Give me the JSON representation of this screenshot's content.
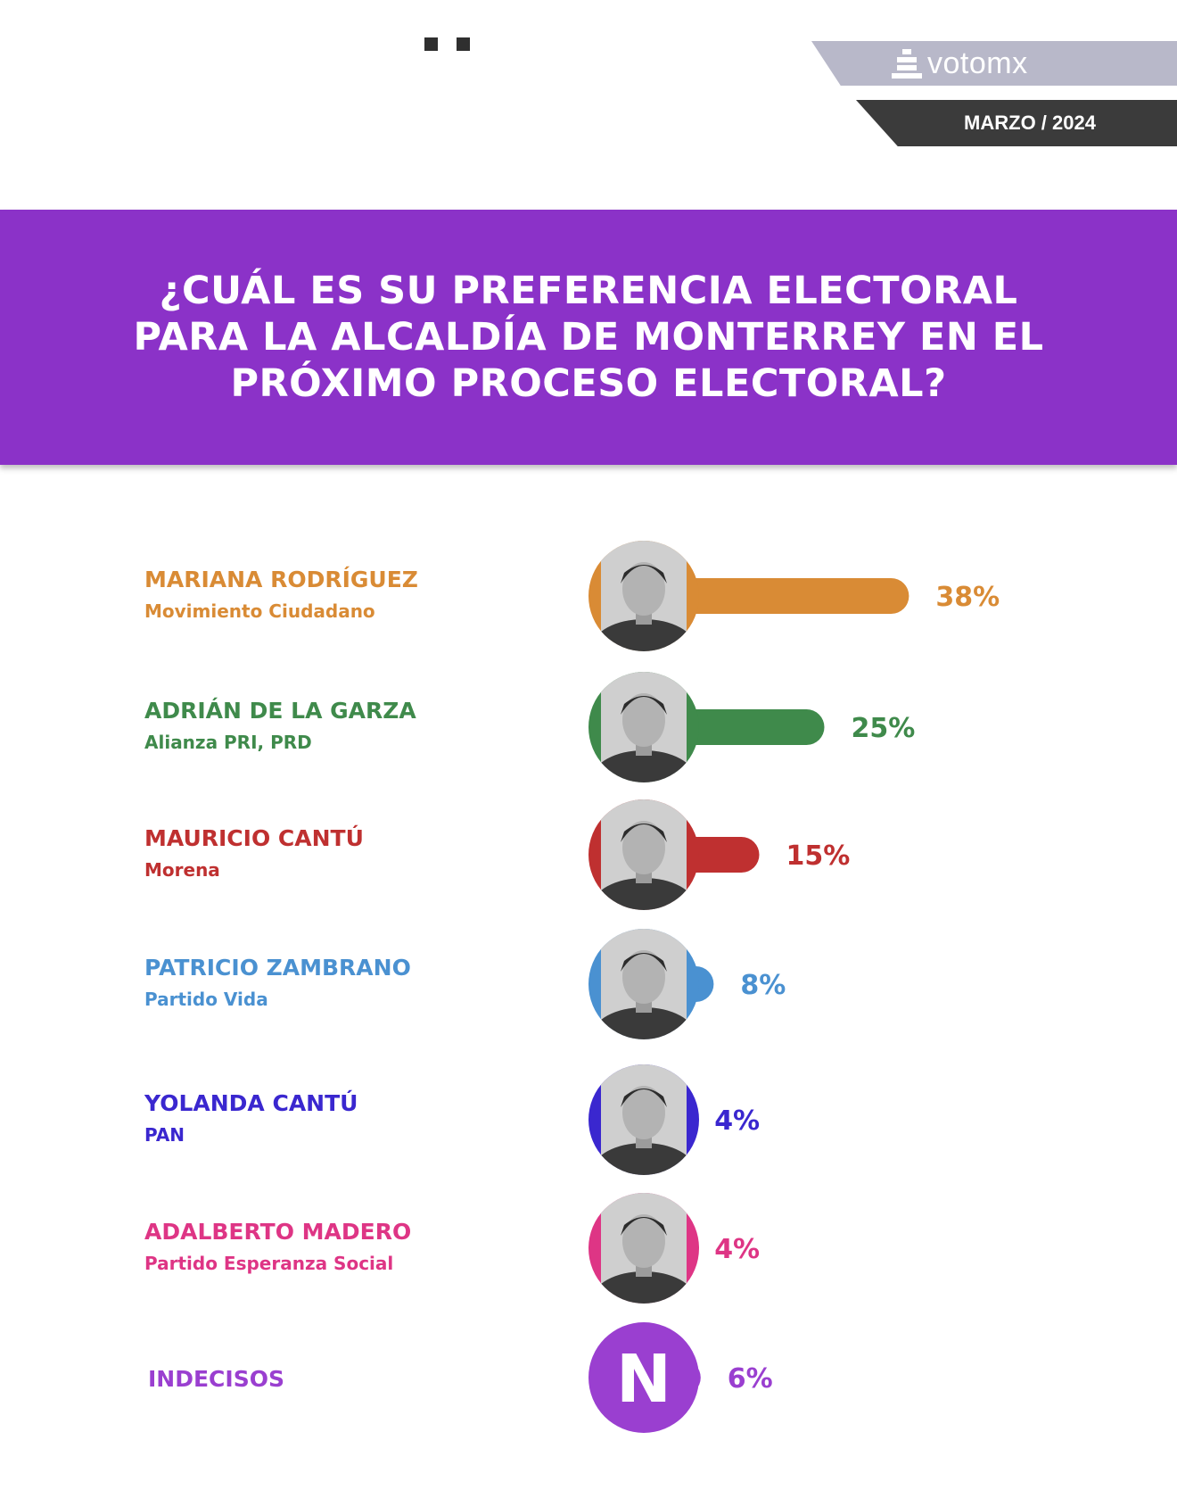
{
  "header": {
    "brand_name": "votomx",
    "date": "MARZO / 2024",
    "question": "¿CUÁL ES SU PREFERENCIA ELECTORAL PARA LA ALCALDÍA DE MONTERREY EN EL PRÓXIMO PROCESO ELECTORAL?"
  },
  "chart_data": {
    "type": "bar",
    "title": "¿CUÁL ES SU PREFERENCIA ELECTORAL PARA LA ALCALDÍA DE MONTERREY EN EL PRÓXIMO PROCESO ELECTORAL?",
    "unit": "%",
    "categories": [
      "MARIANA RODRÍGUEZ",
      "ADRIÁN DE LA GARZA",
      "MAURICIO CANTÚ",
      "PATRICIO ZAMBRANO",
      "YOLANDA CANTÚ",
      "ADALBERTO MADERO",
      "INDECISOS"
    ],
    "values": [
      38,
      25,
      15,
      8,
      4,
      4,
      6
    ],
    "items": [
      {
        "name": "MARIANA RODRÍGUEZ",
        "party": "Movimiento Ciudadano",
        "value": 38,
        "label": "38%",
        "color": "#d98b35",
        "icon": "portrait-photo"
      },
      {
        "name": "ADRIÁN DE LA GARZA",
        "party": "Alianza PRI, PRD",
        "value": 25,
        "label": "25%",
        "color": "#3f8a4b",
        "icon": "portrait-photo"
      },
      {
        "name": "MAURICIO CANTÚ",
        "party": "Morena",
        "value": 15,
        "label": "15%",
        "color": "#bf3030",
        "icon": "portrait-photo"
      },
      {
        "name": "PATRICIO ZAMBRANO",
        "party": "Partido Vida",
        "value": 8,
        "label": "8%",
        "color": "#4a91d1",
        "icon": "portrait-photo"
      },
      {
        "name": "YOLANDA CANTÚ",
        "party": "PAN",
        "value": 4,
        "label": "4%",
        "color": "#3a27cf",
        "icon": "portrait-photo"
      },
      {
        "name": "ADALBERTO MADERO",
        "party": "Partido Esperanza Social",
        "value": 4,
        "label": "4%",
        "color": "#de3585",
        "icon": "portrait-photo"
      },
      {
        "name": "INDECISOS",
        "party": "",
        "value": 6,
        "label": "6%",
        "color": "#9a3fd0",
        "icon": "letter-n",
        "initial": "N"
      }
    ]
  }
}
